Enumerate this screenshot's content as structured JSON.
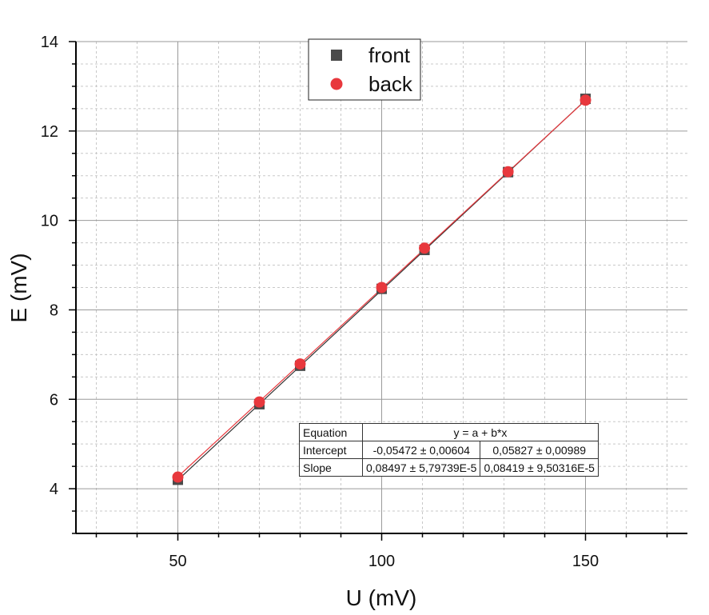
{
  "chart_data": {
    "type": "scatter",
    "title": "",
    "xlabel": "U (mV)",
    "ylabel": "E (mV)",
    "xlim": [
      25,
      175
    ],
    "ylim": [
      3,
      14
    ],
    "xticks": [
      50,
      100,
      150
    ],
    "yticks": [
      4,
      6,
      8,
      10,
      12,
      14
    ],
    "grid": true,
    "legend_position": "top-center",
    "series": [
      {
        "name": "front",
        "marker": "square",
        "color": "#4a4a4a",
        "x": [
          50,
          70,
          80,
          100,
          110.5,
          131,
          150
        ],
        "y": [
          4.2,
          5.89,
          6.75,
          8.47,
          9.34,
          11.08,
          12.72
        ],
        "fit": {
          "intercept": -0.05472,
          "slope": 0.08497
        },
        "fit_color": "#333333"
      },
      {
        "name": "back",
        "marker": "circle",
        "color": "#e8383d",
        "x": [
          50,
          70,
          80,
          100,
          110.5,
          131,
          150
        ],
        "y": [
          4.26,
          5.94,
          6.79,
          8.5,
          9.38,
          11.09,
          12.69
        ],
        "fit": {
          "intercept": 0.05827,
          "slope": 0.08419
        },
        "fit_color": "#e8383d"
      }
    ],
    "fit_table": {
      "equation_label": "Equation",
      "equation": "y = a + b*x",
      "intercept_label": "Intercept",
      "intercept_front": "-0,05472 ± 0,00604",
      "intercept_back": "0,05827 ± 0,00989",
      "slope_label": "Slope",
      "slope_front": "0,08497 ± 5,79739E-5",
      "slope_back": "0,08419 ± 9,50316E-5"
    }
  }
}
